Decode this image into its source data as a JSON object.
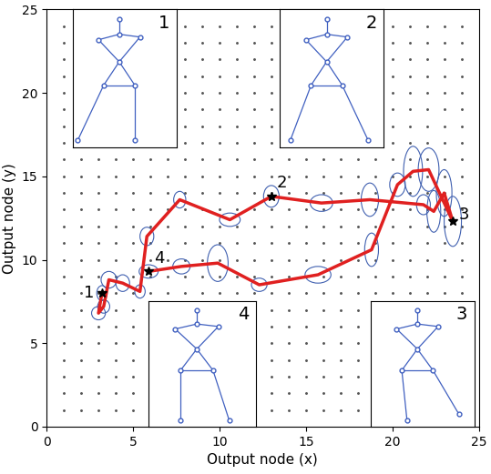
{
  "chart_data": {
    "type": "line",
    "xlabel": "Output node (x)",
    "ylabel": "Output node (y)",
    "xlim": [
      0,
      25
    ],
    "ylim": [
      0,
      25
    ],
    "xticks": [
      0,
      5,
      10,
      15,
      20,
      25
    ],
    "yticks": [
      0,
      5,
      10,
      15,
      20,
      25
    ],
    "grid": true,
    "color": "#e02020",
    "marker": "*",
    "line_style": "solid",
    "x": [
      3.2,
      3.0,
      3.3,
      3.6,
      4.4,
      5.4,
      5.8,
      7.7,
      10.6,
      13.0,
      15.9,
      18.7,
      21.8,
      22.4,
      23.0,
      23.5,
      22.1,
      21.2,
      20.3,
      18.8,
      15.7,
      12.3,
      9.9,
      7.8,
      5.9
    ],
    "y": [
      8.0,
      6.8,
      7.2,
      8.8,
      8.6,
      8.1,
      11.4,
      13.6,
      12.4,
      13.8,
      13.4,
      13.6,
      13.3,
      12.9,
      14.0,
      12.3,
      15.4,
      15.3,
      14.5,
      10.6,
      9.1,
      8.5,
      9.8,
      9.6,
      9.3
    ],
    "ellipse_widths": [
      0.6,
      0.8,
      0.7,
      0.9,
      0.8,
      0.6,
      0.8,
      0.7,
      1.2,
      0.9,
      1.3,
      1.0,
      0.8,
      0.8,
      0.9,
      1.0,
      1.2,
      1.1,
      0.9,
      0.8,
      1.5,
      0.9,
      1.2,
      1.0,
      1.1
    ],
    "ellipse_heights": [
      0.9,
      0.8,
      0.8,
      1.0,
      1.0,
      0.8,
      1.1,
      1.0,
      0.8,
      1.3,
      1.0,
      2.0,
      1.2,
      2.5,
      2.8,
      3.0,
      2.6,
      3.0,
      1.4,
      2.0,
      1.0,
      0.8,
      2.2,
      0.9,
      0.8
    ],
    "point_labels": [
      "1",
      null,
      null,
      null,
      null,
      null,
      null,
      null,
      null,
      "2",
      null,
      null,
      null,
      null,
      null,
      "3",
      null,
      null,
      null,
      null,
      null,
      null,
      null,
      null,
      "4"
    ],
    "insets": [
      "1",
      "2",
      "3",
      "4"
    ]
  }
}
